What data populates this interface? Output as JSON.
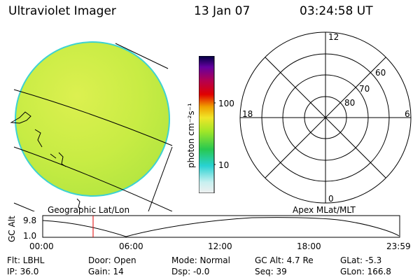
{
  "header": {
    "title": "Ultraviolet Imager",
    "date": "13 Jan 07",
    "time": "03:24:58 UT"
  },
  "colorbar": {
    "unit_label": "photon cm⁻²s⁻¹",
    "tick_100": "100",
    "tick_10": "10"
  },
  "polar": {
    "lat_60": "60",
    "lat_70": "70",
    "lat_80": "80",
    "mlt_12": "12",
    "mlt_18": "18",
    "mlt_6": "6",
    "mlt_0": "0"
  },
  "map_labels": {
    "left": "Geographic Lat/Lon",
    "right": "Apex MLat/MLT"
  },
  "altitude_plot": {
    "ylabel": "GC Alt",
    "y_max": "9.8",
    "y_min": "1.0",
    "x_ticks": [
      "00:00",
      "06:00",
      "12:00",
      "18:00",
      "23:59"
    ],
    "marker_time": "03:24:58"
  },
  "status": {
    "flt": "Flt: LBHL",
    "door": "Door: Open",
    "mode": "Mode: Normal",
    "gc_alt": "GC Alt: 4.7 Re",
    "glat": "GLat:  -5.3",
    "ip": "IP: 36.0",
    "gain": "Gain: 14",
    "dsp": "Dsp:   -0.0",
    "seq": "Seq: 39",
    "glon": "GLon: 166.8"
  },
  "colors": {
    "disk_fill": "#d2f046",
    "disk_edge": "#3cd2d2",
    "marker": "#e00000"
  }
}
